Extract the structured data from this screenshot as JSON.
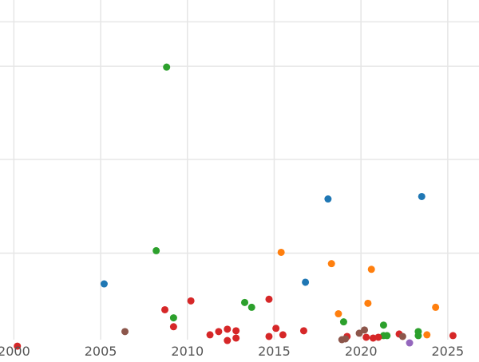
{
  "chart_data": {
    "type": "scatter",
    "title": "",
    "xlabel": "",
    "ylabel": "",
    "xlim": [
      1999.2,
      2026.8
    ],
    "ylim": [
      0,
      420
    ],
    "grid": true,
    "x_ticks": [
      {
        "value": 2000,
        "label": "2000"
      },
      {
        "value": 2005,
        "label": "2005"
      },
      {
        "value": 2010,
        "label": "2010"
      },
      {
        "value": 2015,
        "label": "2015"
      },
      {
        "value": 2020,
        "label": "2020"
      },
      {
        "value": 2025,
        "label": "2025"
      }
    ],
    "y_gridlines": [
      107,
      223,
      338,
      393
    ],
    "series": [
      {
        "color": "#1f77b4",
        "points": [
          {
            "x": 2005.2,
            "y": 69
          },
          {
            "x": 2016.8,
            "y": 71
          },
          {
            "x": 2018.1,
            "y": 174
          },
          {
            "x": 2023.5,
            "y": 177
          }
        ]
      },
      {
        "color": "#ff7f0e",
        "points": [
          {
            "x": 2015.4,
            "y": 108
          },
          {
            "x": 2018.3,
            "y": 94
          },
          {
            "x": 2018.7,
            "y": 32
          },
          {
            "x": 2020.4,
            "y": 45
          },
          {
            "x": 2020.6,
            "y": 87
          },
          {
            "x": 2023.8,
            "y": 6
          },
          {
            "x": 2024.3,
            "y": 40
          }
        ]
      },
      {
        "color": "#2ca02c",
        "points": [
          {
            "x": 2008.2,
            "y": 110
          },
          {
            "x": 2008.8,
            "y": 337
          },
          {
            "x": 2009.2,
            "y": 27
          },
          {
            "x": 2013.3,
            "y": 46
          },
          {
            "x": 2013.7,
            "y": 40
          },
          {
            "x": 2019.0,
            "y": 22
          },
          {
            "x": 2021.3,
            "y": 18
          },
          {
            "x": 2021.3,
            "y": 5
          },
          {
            "x": 2021.5,
            "y": 5
          },
          {
            "x": 2023.3,
            "y": 10
          },
          {
            "x": 2023.3,
            "y": 5
          }
        ]
      },
      {
        "color": "#d62728",
        "points": [
          {
            "x": 2000.2,
            "y": -8
          },
          {
            "x": 2008.7,
            "y": 37
          },
          {
            "x": 2009.2,
            "y": 16
          },
          {
            "x": 2010.2,
            "y": 48
          },
          {
            "x": 2011.3,
            "y": 6
          },
          {
            "x": 2011.8,
            "y": 10
          },
          {
            "x": 2012.3,
            "y": 13
          },
          {
            "x": 2012.3,
            "y": -1
          },
          {
            "x": 2012.8,
            "y": 11
          },
          {
            "x": 2012.8,
            "y": 2
          },
          {
            "x": 2014.7,
            "y": 50
          },
          {
            "x": 2014.7,
            "y": 4
          },
          {
            "x": 2015.1,
            "y": 14
          },
          {
            "x": 2015.5,
            "y": 6
          },
          {
            "x": 2016.7,
            "y": 11
          },
          {
            "x": 2019.2,
            "y": 4
          },
          {
            "x": 2020.3,
            "y": 3
          },
          {
            "x": 2020.7,
            "y": 2
          },
          {
            "x": 2021.0,
            "y": 3
          },
          {
            "x": 2022.2,
            "y": 7
          },
          {
            "x": 2025.3,
            "y": 5
          }
        ]
      },
      {
        "color": "#9467bd",
        "points": [
          {
            "x": 2022.8,
            "y": -4
          }
        ]
      },
      {
        "color": "#8c564b",
        "points": [
          {
            "x": 2006.4,
            "y": 10
          },
          {
            "x": 2018.9,
            "y": 0
          },
          {
            "x": 2019.1,
            "y": 1
          },
          {
            "x": 2019.9,
            "y": 8
          },
          {
            "x": 2020.2,
            "y": 12
          },
          {
            "x": 2022.4,
            "y": 4
          }
        ]
      }
    ]
  }
}
